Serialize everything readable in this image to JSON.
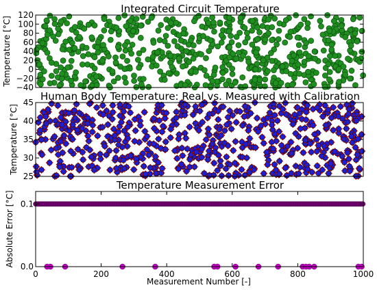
{
  "chart_data": [
    {
      "type": "scatter",
      "title": "Integrated Circuit Temperature",
      "xlabel": "",
      "ylabel": "Temperature [°C]",
      "xlim": [
        0,
        1000
      ],
      "ylim": [
        -40,
        120
      ],
      "yticks": [
        "120",
        "100",
        "80",
        "60",
        "40",
        "20",
        "0",
        "−20",
        "−40"
      ],
      "grid": false,
      "series": [
        {
          "marker": "circle",
          "color": "#1f8f1f",
          "count": 1000,
          "distribution": "uniform",
          "y_range": [
            -40,
            120
          ]
        }
      ]
    },
    {
      "type": "scatter",
      "title": "Human Body Temperature: Real vs. Measured with Calibration",
      "xlabel": "",
      "ylabel": "Temperature [°C]",
      "xlim": [
        0,
        1000
      ],
      "ylim": [
        25,
        45
      ],
      "yticks": [
        "45",
        "40",
        "35",
        "30",
        "25"
      ],
      "grid": false,
      "series": [
        {
          "marker": "diamond",
          "color": "#cc1f1f",
          "count": 1000,
          "distribution": "uniform",
          "y_range": [
            25,
            45
          ]
        },
        {
          "marker": "square",
          "color": "#1f1fd6",
          "count": 1000,
          "distribution": "uniform",
          "y_range": [
            25,
            45
          ]
        }
      ]
    },
    {
      "type": "scatter",
      "title": "Temperature Measurement Error",
      "xlabel": "Measurement Number [-]",
      "ylabel": "Absolute Error [°C]",
      "xlim": [
        0,
        1000
      ],
      "ylim": [
        0,
        0.12
      ],
      "yticks": [
        "0.1",
        "0.0"
      ],
      "xticks": [
        "0",
        "200",
        "400",
        "600",
        "800",
        "1000"
      ],
      "grid": false,
      "series": [
        {
          "marker": "circle",
          "color": "#800080",
          "value": 0.1,
          "count": 1000,
          "note_values": "most points at 0.1"
        },
        {
          "marker": "circle",
          "color": "#c000c0",
          "value": 0.0,
          "x": [
            35,
            45,
            90,
            265,
            365,
            545,
            555,
            610,
            680,
            740,
            815,
            825,
            835,
            850,
            985,
            995
          ]
        }
      ]
    }
  ]
}
